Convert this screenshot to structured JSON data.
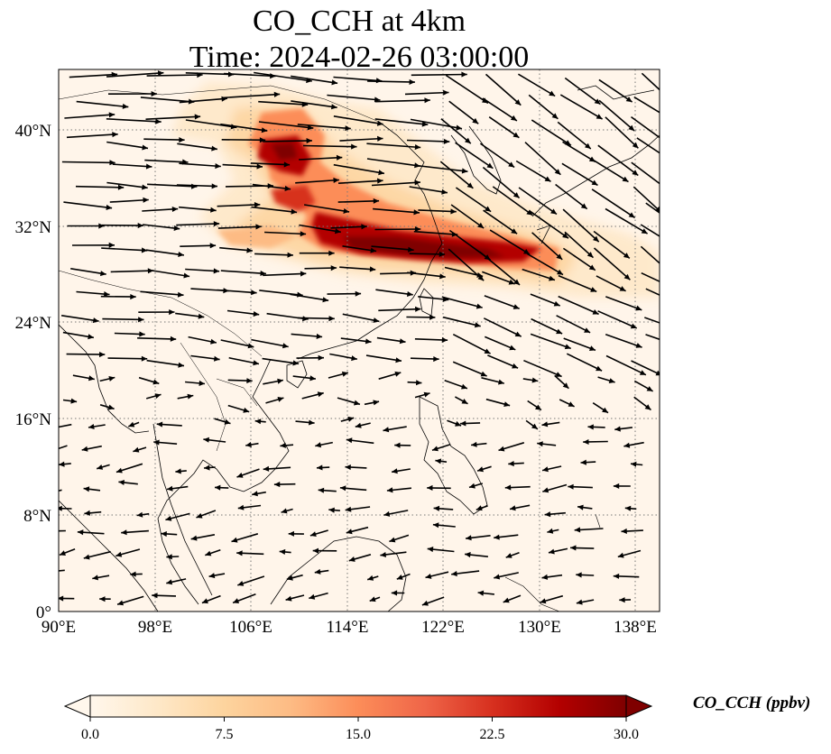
{
  "title": {
    "line1": "CO_CCH at 4km",
    "line2": "Time: 2024-02-26 03:00:00"
  },
  "map": {
    "lon_range": [
      90,
      140
    ],
    "lat_range": [
      0,
      45
    ],
    "lon_ticks": [
      "90°E",
      "98°E",
      "106°E",
      "114°E",
      "122°E",
      "130°E",
      "138°E"
    ],
    "lat_ticks": [
      "0°",
      "8°N",
      "16°N",
      "24°N",
      "32°N",
      "40°N"
    ],
    "gridlines": true
  },
  "colorbar": {
    "label": "CO_CCH (ppbv)",
    "ticks": [
      "0.0",
      "7.5",
      "15.0",
      "22.5",
      "30.0"
    ],
    "range": [
      0,
      30
    ],
    "extend": "both",
    "colormap": [
      "#fff7ec",
      "#fee8c8",
      "#fdd49e",
      "#fdbb84",
      "#fc8d59",
      "#ef6548",
      "#d7301f",
      "#b30000",
      "#7f0000"
    ]
  }
}
